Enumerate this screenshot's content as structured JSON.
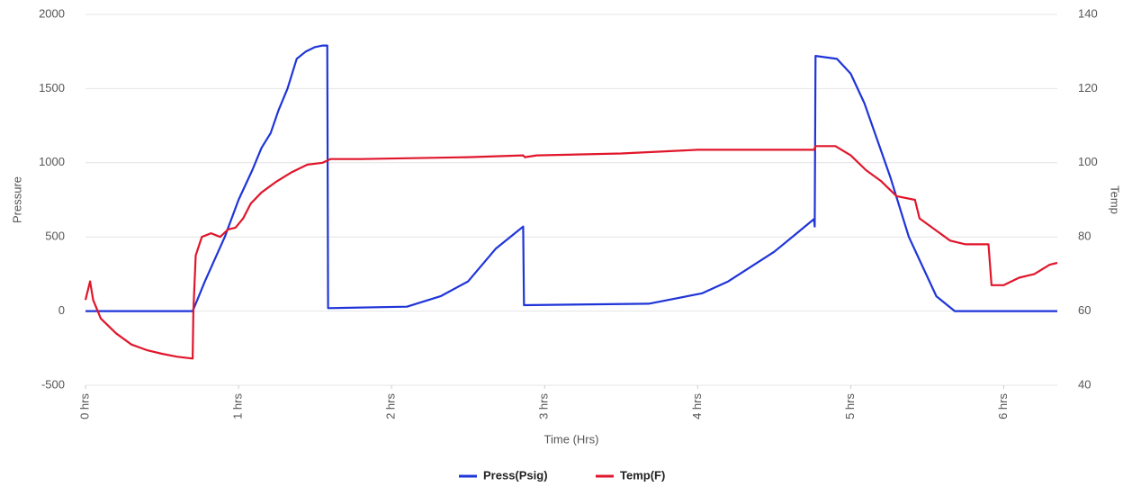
{
  "chart_data": {
    "type": "line",
    "x_label": "Time (Hrs)",
    "y_label": "Pressure",
    "y2_label": "Temp",
    "xlim": [
      0,
      6.35
    ],
    "xticks": [
      {
        "value": 0,
        "label": "0 hrs"
      },
      {
        "value": 1,
        "label": "1 hrs"
      },
      {
        "value": 2,
        "label": "2 hrs"
      },
      {
        "value": 3,
        "label": "3 hrs"
      },
      {
        "value": 4,
        "label": "4 hrs"
      },
      {
        "value": 5,
        "label": "5 hrs"
      },
      {
        "value": 6,
        "label": "6 hrs"
      }
    ],
    "ylim": [
      -500,
      2000
    ],
    "yticks": [
      -500,
      0,
      500,
      1000,
      1500,
      2000
    ],
    "y2lim": [
      40,
      140
    ],
    "y2ticks": [
      40,
      60,
      80,
      100,
      120,
      140
    ],
    "grid": true,
    "legend": "bottom",
    "series": [
      {
        "name": "Press(Psig)",
        "color": "#1f35d8",
        "x": [
          0,
          0.7,
          0.72,
          0.78,
          0.91,
          1.0,
          1.09,
          1.15,
          1.21,
          1.26,
          1.32,
          1.38,
          1.44,
          1.5,
          1.55,
          1.58,
          1.585,
          2.1,
          2.32,
          2.5,
          2.68,
          2.86,
          2.865,
          3.68,
          4.03,
          4.2,
          4.5,
          4.76,
          4.765,
          4.77,
          4.91,
          5.0,
          5.09,
          5.26,
          5.38,
          5.56,
          5.68,
          6.35
        ],
        "values": [
          0,
          0,
          50,
          200,
          500,
          750,
          950,
          1100,
          1200,
          1350,
          1500,
          1700,
          1750,
          1780,
          1790,
          1790,
          20,
          30,
          100,
          200,
          420,
          570,
          40,
          50,
          120,
          200,
          400,
          620,
          570,
          1720,
          1700,
          1600,
          1400,
          900,
          500,
          100,
          0,
          0
        ]
      },
      {
        "name": "Temp(F)",
        "color": "#e0162b",
        "axis": "y2",
        "x": [
          0,
          0.03,
          0.05,
          0.1,
          0.2,
          0.3,
          0.4,
          0.5,
          0.6,
          0.7,
          0.705,
          0.72,
          0.76,
          0.82,
          0.88,
          0.93,
          0.98,
          1.03,
          1.08,
          1.15,
          1.25,
          1.35,
          1.45,
          1.55,
          1.6,
          1.8,
          2.5,
          2.86,
          2.87,
          2.95,
          3.5,
          4.0,
          4.76,
          4.77,
          4.9,
          5.0,
          5.1,
          5.2,
          5.3,
          5.42,
          5.45,
          5.55,
          5.65,
          5.75,
          5.9,
          5.92,
          6.0,
          6.1,
          6.2,
          6.3,
          6.35
        ],
        "values": [
          63,
          68,
          63,
          58,
          54,
          51,
          49.5,
          48.5,
          47.7,
          47.2,
          60,
          75,
          80,
          81,
          80,
          82,
          82.5,
          85,
          89,
          92,
          95,
          97.5,
          99.5,
          100,
          101,
          101,
          101.5,
          102,
          101.5,
          102,
          102.5,
          103.5,
          103.5,
          104.5,
          104.5,
          102,
          98,
          95,
          91,
          90,
          85,
          82,
          79,
          78,
          78,
          67,
          67,
          69,
          70,
          72.5,
          73
        ]
      }
    ]
  }
}
